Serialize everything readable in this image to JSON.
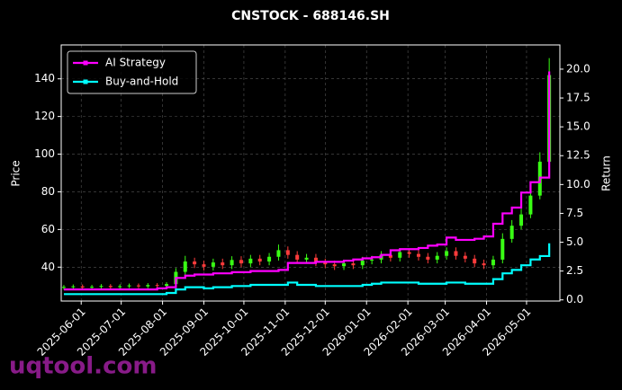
{
  "chart_data": {
    "type": "candlestick",
    "title": "CNSTOCK - 688146.SH",
    "ylabel": "Price",
    "y2label": "Return",
    "watermark": "uqtool.com",
    "xlim": [
      "2025-05-17",
      "2026-05-26"
    ],
    "xticks": [
      "2025-06-01",
      "2025-07-01",
      "2025-08-01",
      "2025-09-01",
      "2025-10-01",
      "2025-11-01",
      "2025-12-01",
      "2026-01-01",
      "2026-02-01",
      "2026-03-01",
      "2026-04-01",
      "2026-05-01"
    ],
    "ylim": [
      22,
      158
    ],
    "yticks": [
      40,
      60,
      80,
      100,
      120,
      140
    ],
    "y2lim": [
      -0.1,
      22.1
    ],
    "y2ticks": [
      {
        "value": 0,
        "label": "0.0"
      },
      {
        "value": 2.5,
        "label": "2.5"
      },
      {
        "value": 5,
        "label": "5.0"
      },
      {
        "value": 7.5,
        "label": "7.5"
      },
      {
        "value": 10,
        "label": "10.0"
      },
      {
        "value": 12.5,
        "label": "12.5"
      },
      {
        "value": 15,
        "label": "15.0"
      },
      {
        "value": 17.5,
        "label": "17.5"
      },
      {
        "value": 20,
        "label": "20.0"
      }
    ],
    "grid": true,
    "legend": "upper left",
    "up_color": "#39ff14",
    "down_color": "#ff3b3b",
    "x": [
      "2025-05-19",
      "2025-05-26",
      "2025-06-02",
      "2025-06-09",
      "2025-06-16",
      "2025-06-23",
      "2025-06-30",
      "2025-07-07",
      "2025-07-14",
      "2025-07-21",
      "2025-07-28",
      "2025-08-04",
      "2025-08-11",
      "2025-08-18",
      "2025-08-25",
      "2025-09-01",
      "2025-09-08",
      "2025-09-15",
      "2025-09-22",
      "2025-09-29",
      "2025-10-06",
      "2025-10-13",
      "2025-10-20",
      "2025-10-27",
      "2025-11-03",
      "2025-11-10",
      "2025-11-17",
      "2025-11-24",
      "2025-12-01",
      "2025-12-08",
      "2025-12-15",
      "2025-12-22",
      "2025-12-29",
      "2026-01-05",
      "2026-01-12",
      "2026-01-19",
      "2026-01-26",
      "2026-02-02",
      "2026-02-09",
      "2026-02-16",
      "2026-02-23",
      "2026-03-02",
      "2026-03-09",
      "2026-03-16",
      "2026-03-23",
      "2026-03-30",
      "2026-04-06",
      "2026-04-13",
      "2026-04-20",
      "2026-04-27",
      "2026-05-04",
      "2026-05-11",
      "2026-05-18"
    ],
    "open": [
      29.0,
      29.5,
      29.8,
      29.2,
      29.6,
      30.0,
      29.4,
      29.9,
      30.3,
      29.8,
      30.5,
      30.1,
      31.0,
      37.5,
      43.0,
      41.5,
      40.2,
      42.5,
      41.0,
      43.8,
      42.0,
      44.5,
      43.0,
      45.5,
      49.0,
      46.5,
      44.0,
      45.0,
      42.5,
      41.5,
      40.5,
      42.0,
      41.0,
      43.5,
      44.0,
      46.5,
      45.0,
      48.0,
      47.0,
      45.5,
      44.0,
      46.0,
      48.5,
      46.0,
      44.5,
      42.0,
      41.0,
      44.0,
      55.0,
      62.0,
      68.0,
      78.0,
      96.0
    ],
    "high": [
      30.5,
      30.8,
      30.8,
      30.6,
      31.0,
      31.0,
      30.9,
      31.3,
      31.3,
      31.5,
      31.5,
      32.0,
      39.5,
      46.0,
      45.0,
      43.5,
      44.5,
      44.5,
      45.8,
      45.8,
      46.5,
      46.5,
      47.5,
      52.0,
      51.0,
      48.5,
      47.0,
      47.0,
      44.5,
      43.5,
      44.0,
      44.0,
      45.5,
      46.0,
      48.5,
      48.5,
      50.0,
      50.0,
      49.0,
      47.5,
      48.0,
      50.5,
      50.5,
      48.0,
      46.5,
      44.0,
      46.0,
      58.0,
      65.0,
      71.0,
      82.0,
      101.0,
      151.0
    ],
    "low": [
      28.0,
      28.5,
      28.2,
      28.2,
      28.6,
      28.4,
      28.4,
      28.9,
      28.8,
      28.8,
      29.1,
      29.1,
      29.0,
      36.0,
      39.5,
      38.2,
      38.2,
      39.0,
      39.0,
      40.0,
      40.0,
      41.0,
      41.0,
      43.5,
      44.5,
      42.0,
      42.0,
      40.5,
      39.5,
      38.5,
      38.5,
      39.0,
      39.0,
      41.5,
      42.0,
      43.0,
      43.0,
      45.0,
      43.5,
      42.0,
      42.0,
      44.0,
      44.0,
      42.5,
      40.0,
      39.0,
      39.0,
      42.0,
      53.0,
      60.0,
      66.0,
      76.0,
      94.0
    ],
    "close": [
      29.5,
      29.8,
      29.2,
      29.6,
      30.0,
      29.4,
      29.9,
      30.3,
      29.8,
      30.5,
      30.1,
      31.0,
      37.5,
      43.0,
      41.5,
      40.2,
      42.5,
      41.0,
      43.8,
      42.0,
      44.5,
      43.0,
      45.5,
      49.0,
      46.5,
      44.0,
      45.0,
      42.5,
      41.5,
      40.5,
      42.0,
      41.0,
      43.5,
      44.0,
      46.5,
      45.0,
      48.0,
      47.0,
      45.5,
      44.0,
      46.0,
      48.5,
      46.0,
      44.5,
      42.0,
      41.0,
      44.0,
      55.0,
      62.0,
      68.0,
      78.0,
      96.0,
      142.0
    ],
    "series": [
      {
        "name": "AI Strategy",
        "color": "#ff00ff",
        "axis": "y2",
        "values": [
          0.9,
          0.9,
          0.9,
          0.9,
          0.9,
          0.9,
          0.9,
          0.9,
          0.9,
          0.9,
          1.0,
          1.1,
          1.9,
          2.1,
          2.2,
          2.2,
          2.3,
          2.3,
          2.4,
          2.4,
          2.5,
          2.5,
          2.5,
          2.6,
          3.2,
          3.2,
          3.2,
          3.3,
          3.3,
          3.3,
          3.4,
          3.5,
          3.6,
          3.7,
          3.9,
          4.3,
          4.4,
          4.4,
          4.5,
          4.7,
          4.8,
          5.4,
          5.2,
          5.2,
          5.3,
          5.5,
          6.6,
          7.5,
          8.0,
          9.3,
          10.2,
          10.6,
          19.8
        ]
      },
      {
        "name": "Buy-and-Hold",
        "color": "#00ffff",
        "axis": "y2",
        "values": [
          0.5,
          0.5,
          0.5,
          0.5,
          0.5,
          0.5,
          0.5,
          0.5,
          0.5,
          0.5,
          0.5,
          0.6,
          0.9,
          1.1,
          1.1,
          1.0,
          1.1,
          1.1,
          1.2,
          1.2,
          1.3,
          1.3,
          1.3,
          1.3,
          1.5,
          1.3,
          1.3,
          1.2,
          1.2,
          1.2,
          1.2,
          1.2,
          1.3,
          1.4,
          1.5,
          1.5,
          1.5,
          1.5,
          1.4,
          1.4,
          1.4,
          1.5,
          1.5,
          1.4,
          1.4,
          1.4,
          1.8,
          2.3,
          2.6,
          3.0,
          3.5,
          3.8,
          4.9
        ]
      }
    ]
  }
}
